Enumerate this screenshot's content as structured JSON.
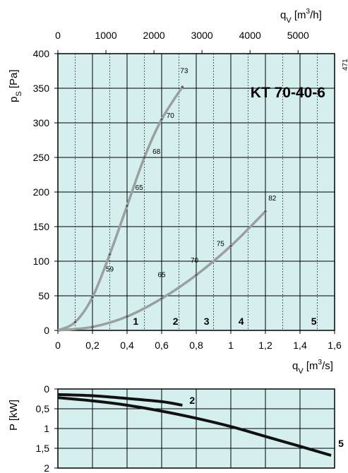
{
  "chart_data": [
    {
      "type": "line",
      "title": "KT  70-40-6",
      "side_code": "471",
      "xlabel": "q_V [m³/s]",
      "x2label": "q_V [m³/h]",
      "ylabel": "p_S [Pa]",
      "xlim": [
        0,
        1.6
      ],
      "x2lim": [
        0,
        5760
      ],
      "ylim": [
        0,
        400
      ],
      "x_ticks": [
        "0",
        "0,2",
        "0,4",
        "0,6",
        "0,8",
        "1",
        "1,2",
        "1,4",
        "1,6"
      ],
      "x2_ticks": [
        "0",
        "1000",
        "2000",
        "3000",
        "4000",
        "5000"
      ],
      "y_ticks": [
        "0",
        "50",
        "100",
        "150",
        "200",
        "250",
        "300",
        "350",
        "400"
      ],
      "grid": true,
      "region_labels": [
        {
          "label": "1",
          "x": 0.45,
          "y": 8
        },
        {
          "label": "2",
          "x": 0.68,
          "y": 8
        },
        {
          "label": "3",
          "x": 0.86,
          "y": 8
        },
        {
          "label": "4",
          "x": 1.06,
          "y": 8
        },
        {
          "label": "5",
          "x": 1.48,
          "y": 8
        }
      ],
      "series": [
        {
          "x": [
            0,
            0.1,
            0.2,
            0.3,
            0.4,
            0.5,
            0.6,
            0.72
          ],
          "y": [
            0,
            12,
            48,
            110,
            180,
            250,
            305,
            352
          ],
          "color": "#9aa0a0",
          "annotations": [
            {
              "label": "59",
              "x": 0.3,
              "y": 85
            },
            {
              "label": "65",
              "x": 0.47,
              "y": 203
            },
            {
              "label": "68",
              "x": 0.57,
              "y": 255
            },
            {
              "label": "70",
              "x": 0.65,
              "y": 307
            },
            {
              "label": "73",
              "x": 0.73,
              "y": 372
            }
          ]
        },
        {
          "x": [
            0,
            0.2,
            0.4,
            0.6,
            0.8,
            1.0,
            1.2
          ],
          "y": [
            0,
            5,
            20,
            46,
            80,
            122,
            172
          ],
          "color": "#9aa0a0",
          "annotations": [
            {
              "label": "65",
              "x": 0.6,
              "y": 77
            },
            {
              "label": "70",
              "x": 0.79,
              "y": 98
            },
            {
              "label": "75",
              "x": 0.94,
              "y": 122
            },
            {
              "label": "82",
              "x": 1.24,
              "y": 188
            }
          ]
        }
      ]
    },
    {
      "type": "line",
      "ylabel": "P [kW]",
      "y_ticks": [
        "0",
        "0,5",
        "1",
        "1,5",
        "2"
      ],
      "ylim": [
        0,
        2
      ],
      "xlim": [
        0,
        1.6
      ],
      "y_inverted": true,
      "grid": true,
      "series": [
        {
          "name": "2",
          "x": [
            0,
            0.2,
            0.4,
            0.6,
            0.72
          ],
          "y": [
            0.14,
            0.17,
            0.24,
            0.32,
            0.41
          ],
          "color": "#111111"
        },
        {
          "name": "5",
          "x": [
            0,
            0.2,
            0.4,
            0.6,
            0.8,
            1.0,
            1.2,
            1.4,
            1.58
          ],
          "y": [
            0.22,
            0.3,
            0.41,
            0.56,
            0.74,
            0.95,
            1.2,
            1.45,
            1.68
          ],
          "color": "#111111"
        }
      ]
    }
  ]
}
